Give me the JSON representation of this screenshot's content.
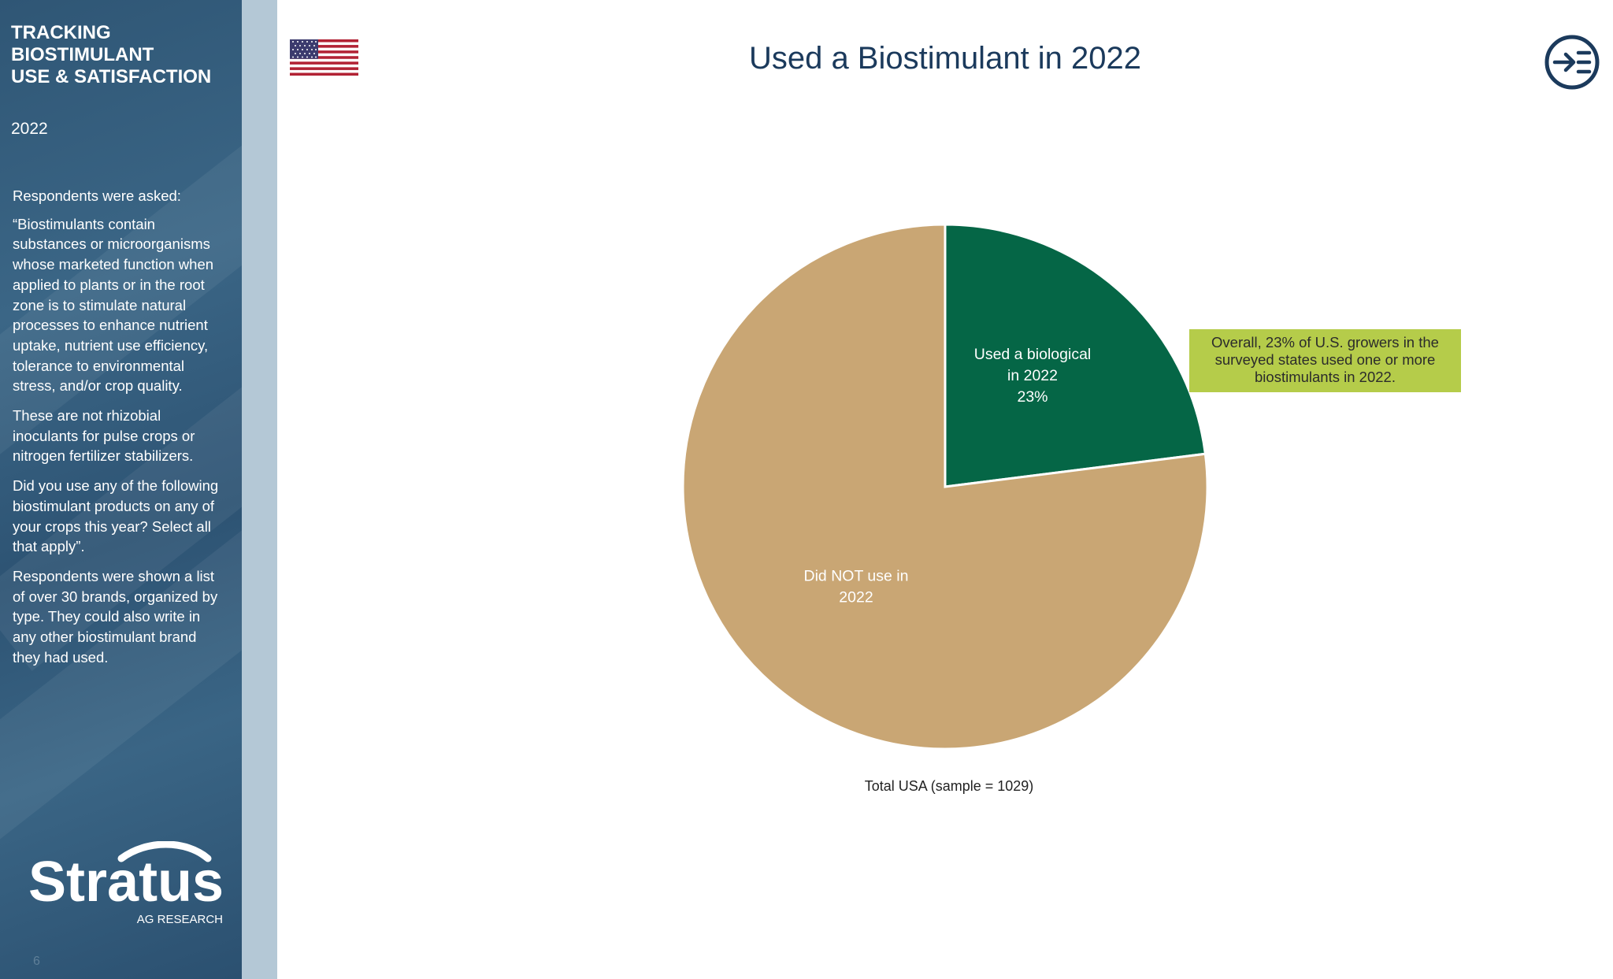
{
  "sidebar": {
    "title_lines": [
      "TRACKING",
      "BIOSTIMULANT",
      "USE & SATISFACTION"
    ],
    "year": "2022",
    "paragraphs": [
      "Respondents were asked:",
      "“Biostimulants contain substances or microorganisms whose marketed function when applied to plants or in the root zone is to stimulate natural processes to enhance nutrient uptake, nutrient use efficiency, tolerance to environmental stress, and/or crop quality.",
      "These are not rhizobial inoculants for pulse crops or nitrogen fertilizer stabilizers.",
      "Did you use any of the following biostimulant products on any of your crops this year? Select all that apply”.",
      "Respondents were shown a list of over 30 brands, organized by type. They could also write in any other biostimulant brand they had used."
    ],
    "logo_text": "Stratus",
    "logo_subtext": "AG RESEARCH",
    "page_number": "6"
  },
  "header": {
    "title": "Used a Biostimulant in 2022",
    "flag_icon": "us-flag-icon",
    "menu_icon": "arrow-into-list-icon"
  },
  "callout": {
    "lines": [
      "Overall, 23% of U.S. growers in the",
      "surveyed states used one or more",
      "biostimulants in 2022."
    ]
  },
  "chart_data": {
    "type": "pie",
    "title": "Used a Biostimulant in 2022",
    "slices": [
      {
        "label_lines": [
          "Used a biological",
          "in 2022",
          "23%"
        ],
        "value": 23,
        "color": "#056646"
      },
      {
        "label_lines": [
          "Did NOT use in",
          "2022"
        ],
        "value": 77,
        "color": "#c9a674"
      }
    ],
    "caption": "Total USA (sample = 1029)"
  },
  "colors": {
    "sidebar_bg": "#35607f",
    "title": "#1b3a5c",
    "callout_bg": "#b5cc4a"
  }
}
